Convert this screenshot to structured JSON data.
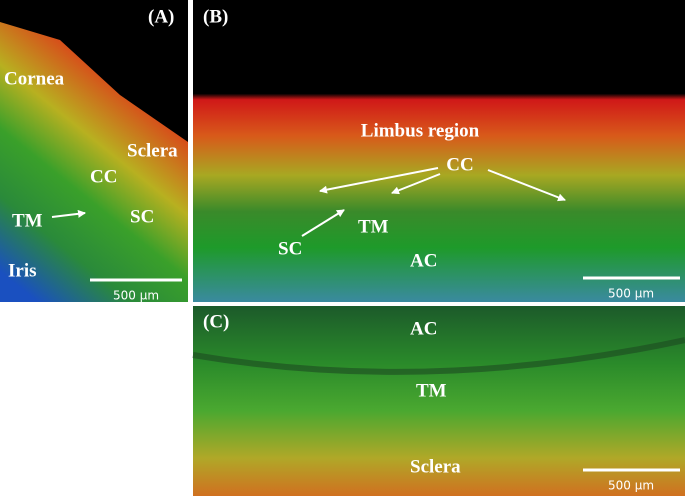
{
  "panels": [
    {
      "label": "(A)",
      "annotations": [
        "Cornea",
        "Sclera",
        "CC",
        "TM",
        "SC",
        "Iris"
      ],
      "scale_bar": "500 µm"
    },
    {
      "label": "(B)",
      "annotations": [
        "Limbus region",
        "CC",
        "SC",
        "TM",
        "AC"
      ],
      "scale_bar": "500 µm"
    },
    {
      "label": "(C)",
      "annotations": [
        "AC",
        "TM",
        "Sclera"
      ],
      "scale_bar": "500 µm"
    }
  ]
}
